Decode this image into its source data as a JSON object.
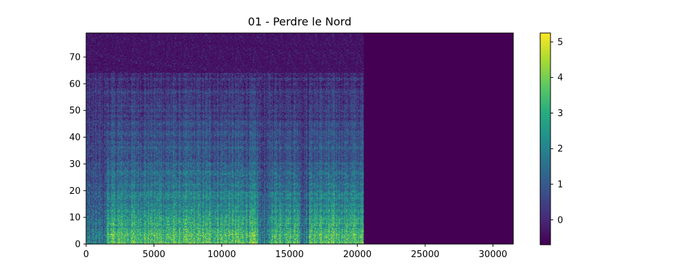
{
  "chart_data": {
    "type": "heatmap",
    "title": "01 - Perdre le Nord",
    "xlabel": "",
    "ylabel": "",
    "xlim": [
      0,
      31500
    ],
    "ylim": [
      0,
      79
    ],
    "x_ticks": [
      0,
      5000,
      10000,
      15000,
      20000,
      25000,
      30000
    ],
    "x_tick_labels": [
      "0",
      "5000",
      "10000",
      "15000",
      "20000",
      "25000",
      "30000"
    ],
    "y_ticks": [
      0,
      10,
      20,
      30,
      40,
      50,
      60,
      70
    ],
    "y_tick_labels": [
      "0",
      "10",
      "20",
      "30",
      "40",
      "50",
      "60",
      "70"
    ],
    "colorbar": {
      "colormap": "viridis",
      "range": [
        -0.7,
        5.25
      ],
      "ticks": [
        0,
        1,
        2,
        3,
        4,
        5
      ],
      "tick_labels": [
        "0",
        "1",
        "2",
        "3",
        "4",
        "5"
      ]
    },
    "data_end_x": 20500,
    "quiet_segments_x": [
      [
        12700,
        13600
      ],
      [
        15800,
        16400
      ]
    ],
    "background_color": "#440154"
  }
}
